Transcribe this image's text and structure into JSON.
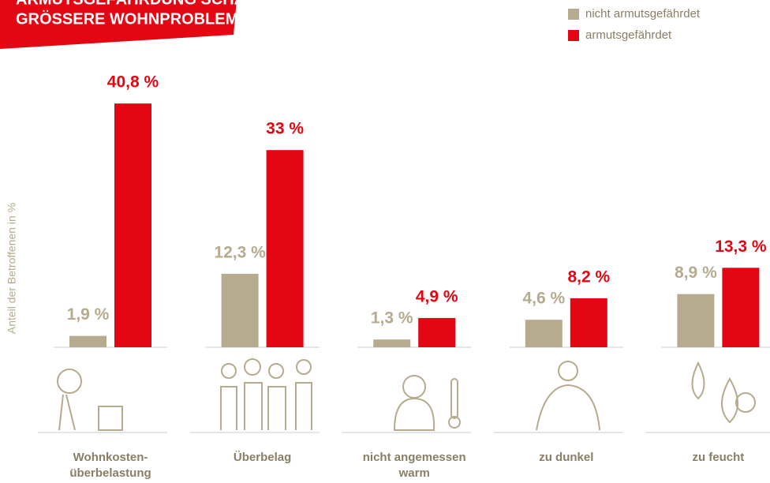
{
  "chart_data": {
    "type": "bar",
    "title": [
      "ARMUTSGEFÄHRDUNG SCHAFFT",
      "GRÖSSERE WOHNPROBLEME"
    ],
    "y_axis_label": "Anteil der Betroffenen in %",
    "categories": [
      [
        "Wohnkosten-",
        "überbelastung"
      ],
      [
        "Überbelag"
      ],
      [
        "nicht angemessen",
        "warm"
      ],
      [
        "zu dunkel"
      ],
      [
        "zu feucht"
      ]
    ],
    "series": [
      {
        "name": "nicht armutsgefährdet",
        "color": "#b6ab8f",
        "values": [
          1.9,
          12.3,
          1.3,
          4.6,
          8.9
        ],
        "value_labels": [
          "1,9 %",
          "12,3 %",
          "1,3 %",
          "4,6 %",
          "8,9 %"
        ]
      },
      {
        "name": "armutsgefährdet",
        "color": "#e30613",
        "values": [
          40.8,
          33,
          4.9,
          8.2,
          13.3
        ],
        "value_labels": [
          "40,8 %",
          "33 %",
          "4,9 %",
          "8,2 %",
          "13,3 %"
        ]
      }
    ],
    "legend": "top-right"
  }
}
